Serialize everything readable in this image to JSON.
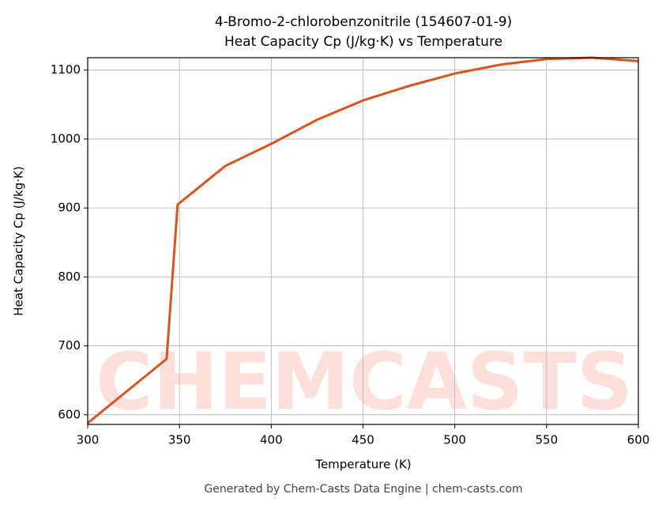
{
  "chart_data": {
    "type": "line",
    "title": "4-Bromo-2-chlorobenzonitrile (154607-01-9)",
    "subtitle": "Heat Capacity Cp (J/kg·K) vs Temperature",
    "x_label": "Temperature (K)",
    "y_label": "Heat Capacity Cp (J/kg·K)",
    "footer": "Generated by Chem-Casts Data Engine | chem-casts.com",
    "watermark": "CHEMCASTS",
    "x": [
      300,
      343,
      349,
      375,
      400,
      425,
      450,
      475,
      500,
      525,
      550,
      575,
      600
    ],
    "series": [
      {
        "name": "Cp",
        "color": "#d9541e",
        "values": [
          588,
          681,
          905,
          961,
          993,
          1028,
          1056,
          1077,
          1095,
          1108,
          1116,
          1118,
          1113
        ]
      }
    ],
    "xlim": [
      300,
      600
    ],
    "xticks": [
      300,
      350,
      400,
      450,
      500,
      550,
      600
    ],
    "ylim": [
      586,
      1118
    ],
    "yticks": [
      600,
      700,
      800,
      900,
      1000,
      1100
    ],
    "grid": true
  }
}
